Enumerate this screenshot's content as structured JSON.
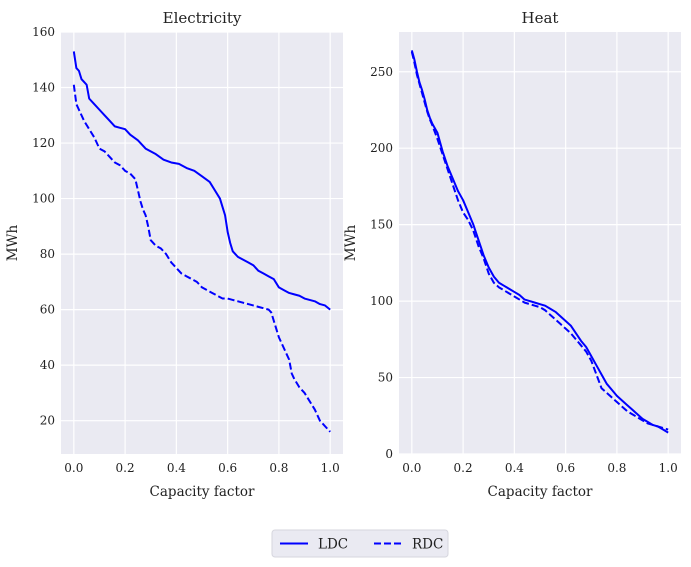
{
  "chart_data": [
    {
      "type": "line",
      "title": "Electricity",
      "xlabel": "Capacity factor",
      "ylabel": "MWh",
      "xlim": [
        -0.05,
        1.05
      ],
      "ylim": [
        8,
        160
      ],
      "xticks": [
        0.0,
        0.2,
        0.4,
        0.6,
        0.8,
        1.0
      ],
      "xtick_labels": [
        "0.0",
        "0.2",
        "0.4",
        "0.6",
        "0.8",
        "1.0"
      ],
      "yticks": [
        20,
        40,
        60,
        80,
        100,
        120,
        140,
        160
      ],
      "ytick_labels": [
        "20",
        "40",
        "60",
        "80",
        "100",
        "120",
        "140",
        "160"
      ],
      "grid": true,
      "series": [
        {
          "name": "LDC",
          "style": "solid",
          "color": "#0000ff",
          "points": [
            [
              0.0,
              153
            ],
            [
              0.01,
              147
            ],
            [
              0.02,
              146
            ],
            [
              0.03,
              143
            ],
            [
              0.04,
              142
            ],
            [
              0.05,
              141
            ],
            [
              0.06,
              136
            ],
            [
              0.08,
              134
            ],
            [
              0.1,
              132
            ],
            [
              0.12,
              130
            ],
            [
              0.14,
              128
            ],
            [
              0.16,
              126
            ],
            [
              0.18,
              125.5
            ],
            [
              0.2,
              125
            ],
            [
              0.22,
              123
            ],
            [
              0.25,
              121
            ],
            [
              0.28,
              118
            ],
            [
              0.32,
              116
            ],
            [
              0.35,
              114
            ],
            [
              0.38,
              113
            ],
            [
              0.41,
              112.5
            ],
            [
              0.44,
              111
            ],
            [
              0.47,
              110
            ],
            [
              0.5,
              108
            ],
            [
              0.53,
              106
            ],
            [
              0.55,
              103
            ],
            [
              0.57,
              100
            ],
            [
              0.58,
              97
            ],
            [
              0.59,
              94
            ],
            [
              0.6,
              88
            ],
            [
              0.61,
              84
            ],
            [
              0.62,
              81
            ],
            [
              0.64,
              79
            ],
            [
              0.66,
              78
            ],
            [
              0.68,
              77
            ],
            [
              0.7,
              76
            ],
            [
              0.72,
              74
            ],
            [
              0.74,
              73
            ],
            [
              0.76,
              72
            ],
            [
              0.78,
              71
            ],
            [
              0.8,
              68
            ],
            [
              0.82,
              67
            ],
            [
              0.84,
              66
            ],
            [
              0.86,
              65.5
            ],
            [
              0.88,
              65
            ],
            [
              0.9,
              64
            ],
            [
              0.92,
              63.5
            ],
            [
              0.94,
              63
            ],
            [
              0.96,
              62
            ],
            [
              0.98,
              61.5
            ],
            [
              1.0,
              60
            ]
          ]
        },
        {
          "name": "RDC",
          "style": "dashed",
          "color": "#0000ff",
          "points": [
            [
              0.0,
              141
            ],
            [
              0.01,
              134
            ],
            [
              0.02,
              132
            ],
            [
              0.04,
              128
            ],
            [
              0.06,
              125
            ],
            [
              0.08,
              122
            ],
            [
              0.1,
              118
            ],
            [
              0.12,
              117
            ],
            [
              0.14,
              115
            ],
            [
              0.16,
              113
            ],
            [
              0.18,
              112
            ],
            [
              0.2,
              110
            ],
            [
              0.22,
              109
            ],
            [
              0.24,
              107
            ],
            [
              0.25,
              103
            ],
            [
              0.26,
              99
            ],
            [
              0.27,
              96
            ],
            [
              0.28,
              94
            ],
            [
              0.29,
              90
            ],
            [
              0.3,
              85
            ],
            [
              0.32,
              83
            ],
            [
              0.34,
              82
            ],
            [
              0.36,
              80
            ],
            [
              0.38,
              77
            ],
            [
              0.4,
              75
            ],
            [
              0.42,
              73
            ],
            [
              0.44,
              72
            ],
            [
              0.46,
              71
            ],
            [
              0.48,
              70
            ],
            [
              0.5,
              68
            ],
            [
              0.52,
              67
            ],
            [
              0.54,
              66
            ],
            [
              0.56,
              65
            ],
            [
              0.58,
              64
            ],
            [
              0.6,
              64
            ],
            [
              0.62,
              63.5
            ],
            [
              0.64,
              63
            ],
            [
              0.66,
              62.5
            ],
            [
              0.68,
              62
            ],
            [
              0.7,
              61.5
            ],
            [
              0.72,
              61
            ],
            [
              0.74,
              60.5
            ],
            [
              0.76,
              60
            ],
            [
              0.77,
              59
            ],
            [
              0.78,
              56
            ],
            [
              0.79,
              53
            ],
            [
              0.8,
              50
            ],
            [
              0.82,
              46
            ],
            [
              0.84,
              42
            ],
            [
              0.85,
              37
            ],
            [
              0.86,
              35
            ],
            [
              0.88,
              32
            ],
            [
              0.9,
              30
            ],
            [
              0.92,
              27
            ],
            [
              0.94,
              24
            ],
            [
              0.96,
              20
            ],
            [
              0.98,
              18
            ],
            [
              1.0,
              16
            ]
          ]
        }
      ]
    },
    {
      "type": "line",
      "title": "Heat",
      "xlabel": "Capacity factor",
      "ylabel": "MWh",
      "xlim": [
        -0.05,
        1.05
      ],
      "ylim": [
        0,
        276
      ],
      "xticks": [
        0.0,
        0.2,
        0.4,
        0.6,
        0.8,
        1.0
      ],
      "xtick_labels": [
        "0.0",
        "0.2",
        "0.4",
        "0.6",
        "0.8",
        "1.0"
      ],
      "yticks": [
        0,
        50,
        100,
        150,
        200,
        250
      ],
      "ytick_labels": [
        "0",
        "50",
        "100",
        "150",
        "200",
        "250"
      ],
      "grid": true,
      "series": [
        {
          "name": "LDC",
          "style": "solid",
          "color": "#0000ff",
          "points": [
            [
              0.0,
              264
            ],
            [
              0.01,
              258
            ],
            [
              0.02,
              250
            ],
            [
              0.03,
              243
            ],
            [
              0.04,
              238
            ],
            [
              0.05,
              232
            ],
            [
              0.06,
              225
            ],
            [
              0.07,
              220
            ],
            [
              0.08,
              216
            ],
            [
              0.1,
              210
            ],
            [
              0.12,
              198
            ],
            [
              0.14,
              188
            ],
            [
              0.16,
              180
            ],
            [
              0.18,
              172
            ],
            [
              0.2,
              166
            ],
            [
              0.22,
              158
            ],
            [
              0.24,
              150
            ],
            [
              0.26,
              140
            ],
            [
              0.28,
              130
            ],
            [
              0.3,
              122
            ],
            [
              0.32,
              116
            ],
            [
              0.34,
              112
            ],
            [
              0.36,
              110
            ],
            [
              0.38,
              108
            ],
            [
              0.4,
              106
            ],
            [
              0.42,
              104
            ],
            [
              0.44,
              101
            ],
            [
              0.46,
              100
            ],
            [
              0.48,
              99
            ],
            [
              0.5,
              98
            ],
            [
              0.52,
              97
            ],
            [
              0.54,
              95
            ],
            [
              0.56,
              93
            ],
            [
              0.58,
              90
            ],
            [
              0.6,
              87
            ],
            [
              0.62,
              84
            ],
            [
              0.64,
              79
            ],
            [
              0.66,
              74
            ],
            [
              0.68,
              70
            ],
            [
              0.7,
              64
            ],
            [
              0.72,
              58
            ],
            [
              0.74,
              52
            ],
            [
              0.76,
              46
            ],
            [
              0.78,
              42
            ],
            [
              0.8,
              38
            ],
            [
              0.82,
              35
            ],
            [
              0.84,
              32
            ],
            [
              0.86,
              29
            ],
            [
              0.88,
              26
            ],
            [
              0.9,
              23
            ],
            [
              0.92,
              21
            ],
            [
              0.94,
              19
            ],
            [
              0.96,
              18
            ],
            [
              0.98,
              16
            ],
            [
              1.0,
              14
            ]
          ]
        },
        {
          "name": "RDC",
          "style": "dashed",
          "color": "#0000ff",
          "points": [
            [
              0.0,
              263
            ],
            [
              0.01,
              256
            ],
            [
              0.02,
              248
            ],
            [
              0.03,
              242
            ],
            [
              0.04,
              236
            ],
            [
              0.05,
              230
            ],
            [
              0.06,
              224
            ],
            [
              0.07,
              219
            ],
            [
              0.08,
              215
            ],
            [
              0.1,
              206
            ],
            [
              0.12,
              196
            ],
            [
              0.14,
              186
            ],
            [
              0.16,
              176
            ],
            [
              0.18,
              166
            ],
            [
              0.2,
              158
            ],
            [
              0.22,
              153
            ],
            [
              0.24,
              146
            ],
            [
              0.26,
              136
            ],
            [
              0.28,
              128
            ],
            [
              0.3,
              118
            ],
            [
              0.32,
              112
            ],
            [
              0.34,
              109
            ],
            [
              0.36,
              107
            ],
            [
              0.38,
              105
            ],
            [
              0.4,
              103
            ],
            [
              0.42,
              101
            ],
            [
              0.44,
              99
            ],
            [
              0.46,
              98
            ],
            [
              0.48,
              97
            ],
            [
              0.5,
              96
            ],
            [
              0.52,
              94
            ],
            [
              0.54,
              91
            ],
            [
              0.56,
              88
            ],
            [
              0.58,
              85
            ],
            [
              0.6,
              82
            ],
            [
              0.62,
              79
            ],
            [
              0.64,
              75
            ],
            [
              0.66,
              71
            ],
            [
              0.68,
              67
            ],
            [
              0.7,
              61
            ],
            [
              0.72,
              52
            ],
            [
              0.74,
              43
            ],
            [
              0.76,
              40
            ],
            [
              0.78,
              37
            ],
            [
              0.8,
              34
            ],
            [
              0.82,
              31
            ],
            [
              0.84,
              28
            ],
            [
              0.86,
              26
            ],
            [
              0.88,
              24
            ],
            [
              0.9,
              22
            ],
            [
              0.92,
              20
            ],
            [
              0.94,
              19
            ],
            [
              0.96,
              18
            ],
            [
              0.98,
              17
            ],
            [
              1.0,
              16
            ]
          ]
        }
      ]
    }
  ],
  "legend": {
    "placement": "bottom-center",
    "entries": [
      {
        "label": "LDC",
        "style": "solid"
      },
      {
        "label": "RDC",
        "style": "dashed"
      }
    ]
  },
  "colors": {
    "axes_bg": "#eaeaf2",
    "grid": "#ffffff",
    "line": "#0000ff"
  }
}
